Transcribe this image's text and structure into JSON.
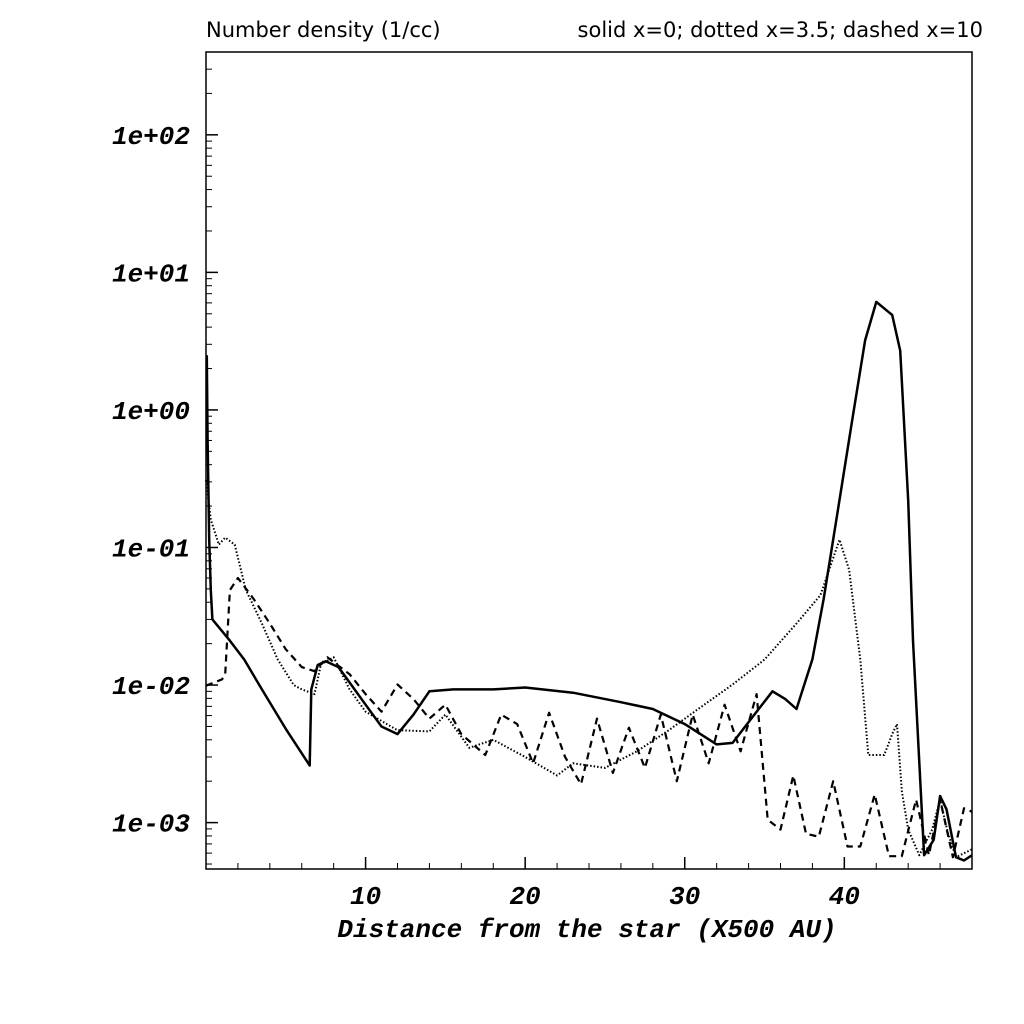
{
  "chart_data": {
    "type": "line",
    "title": "Number density (1/cc)",
    "annotation": "solid x=0; dotted x=3.5; dashed x=10",
    "x_label": "Distance from the star (X500 AU)",
    "xlim": [
      0,
      48
    ],
    "xticks": [
      10,
      20,
      30,
      40
    ],
    "ylim": [
      0.00046,
      400
    ],
    "log_y": true,
    "yticks": [
      {
        "value": 0.001,
        "label": "1e-03"
      },
      {
        "value": 0.01,
        "label": "1e-02"
      },
      {
        "value": 0.1,
        "label": "1e-01"
      },
      {
        "value": 1,
        "label": "1e+00"
      },
      {
        "value": 10,
        "label": "1e+01"
      },
      {
        "value": 100,
        "label": "1e+02"
      }
    ],
    "series": [
      {
        "style": "solid",
        "color": "#000000",
        "x": [
          0.05,
          0.1,
          0.2,
          0.3,
          0.4,
          1.5,
          2.4,
          3.5,
          5,
          6.5,
          6.6,
          7,
          7.5,
          8.3,
          10,
          11,
          12,
          13,
          14,
          15.5,
          18,
          20,
          23,
          26,
          28,
          30,
          32,
          33,
          34.5,
          35.5,
          36.3,
          37,
          38,
          38.7,
          39.5,
          40.5,
          41.3,
          42,
          43,
          43.5,
          44,
          44.3,
          45,
          45.6,
          46,
          46.4,
          47,
          47.5,
          48
        ],
        "values": [
          2.5,
          0.6,
          0.114,
          0.049,
          0.03,
          0.021,
          0.0153,
          0.0093,
          0.0048,
          0.0026,
          0.0093,
          0.014,
          0.0149,
          0.0135,
          0.0072,
          0.005,
          0.0044,
          0.0061,
          0.009,
          0.0093,
          0.0093,
          0.0096,
          0.0088,
          0.0075,
          0.0067,
          0.0052,
          0.0037,
          0.0038,
          0.0064,
          0.009,
          0.0079,
          0.0067,
          0.0154,
          0.042,
          0.16,
          0.85,
          3.2,
          6.1,
          4.9,
          2.7,
          0.22,
          0.021,
          0.00058,
          0.00075,
          0.00156,
          0.00125,
          0.00056,
          0.00053,
          0.00058
        ]
      },
      {
        "style": "dotted",
        "color": "#000000",
        "x": [
          0,
          0.3,
          0.8,
          1.2,
          1.8,
          2.5,
          3.5,
          4.5,
          5.5,
          6,
          6.8,
          7.2,
          8,
          9,
          10,
          12,
          14,
          15,
          16.5,
          18,
          20,
          22,
          23,
          25,
          27,
          29,
          31,
          33,
          35,
          37,
          38.5,
          39.7,
          40.3,
          41,
          41.5,
          42.5,
          43,
          43.3,
          43.6,
          44,
          44.7,
          45.5,
          46,
          46.5,
          47,
          48
        ],
        "values": [
          0.31,
          0.16,
          0.105,
          0.118,
          0.105,
          0.049,
          0.028,
          0.0153,
          0.01,
          0.0093,
          0.0086,
          0.0141,
          0.0159,
          0.0093,
          0.0064,
          0.0047,
          0.0046,
          0.0061,
          0.0035,
          0.004,
          0.003,
          0.0022,
          0.0027,
          0.0025,
          0.0033,
          0.0047,
          0.0069,
          0.0101,
          0.0153,
          0.028,
          0.045,
          0.114,
          0.069,
          0.0153,
          0.0031,
          0.0031,
          0.0044,
          0.0052,
          0.0017,
          0.00089,
          0.00058,
          0.00089,
          0.00147,
          0.00083,
          0.00056,
          0.00064
        ]
      },
      {
        "style": "dashed",
        "color": "#000000",
        "x": [
          0,
          1,
          1.2,
          1.5,
          2,
          3,
          4,
          5,
          6,
          6.8,
          7.6,
          9,
          10,
          11,
          12,
          13,
          14,
          15,
          16,
          17.5,
          18.5,
          19.5,
          20.5,
          21.5,
          22.5,
          23.5,
          24.5,
          25.5,
          26.5,
          27.5,
          28.5,
          29.5,
          30.5,
          31.5,
          32.5,
          33.5,
          34.5,
          35.2,
          36,
          36.8,
          37.6,
          38.4,
          39.3,
          40.2,
          41,
          41.9,
          42.8,
          43.6,
          44.5,
          45.3,
          46,
          46.8,
          47.5,
          48
        ],
        "values": [
          0.0099,
          0.011,
          0.012,
          0.049,
          0.06,
          0.042,
          0.028,
          0.0182,
          0.0135,
          0.0126,
          0.0159,
          0.012,
          0.0086,
          0.0064,
          0.0101,
          0.0079,
          0.0057,
          0.0072,
          0.0044,
          0.0031,
          0.0061,
          0.0052,
          0.0027,
          0.0063,
          0.003,
          0.0019,
          0.0057,
          0.0023,
          0.0049,
          0.0025,
          0.0061,
          0.002,
          0.0061,
          0.0027,
          0.0072,
          0.0033,
          0.0086,
          0.00105,
          0.00089,
          0.0022,
          0.00083,
          0.00079,
          0.002,
          0.00067,
          0.00067,
          0.0016,
          0.00057,
          0.00057,
          0.00147,
          0.00058,
          0.00147,
          0.00056,
          0.00127,
          0.0012
        ]
      }
    ]
  }
}
